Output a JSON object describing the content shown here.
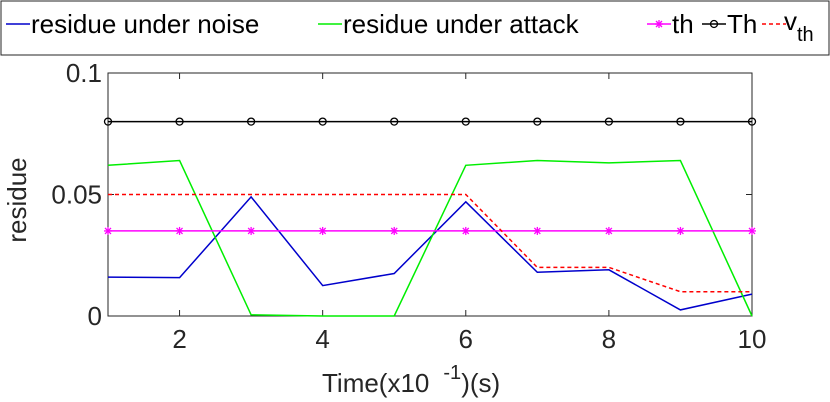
{
  "chart_data": {
    "type": "line",
    "xlabel": "Time(x10",
    "xlabel_exp": "-1",
    "xlabel_suffix": ")(s)",
    "ylabel": "residue",
    "xlim": [
      1,
      10
    ],
    "ylim": [
      0,
      0.1
    ],
    "xticks": [
      2,
      4,
      6,
      8,
      10
    ],
    "yticks": [
      0,
      0.05,
      0.1
    ],
    "ytick_labels": [
      "0",
      "0.05",
      "0.1"
    ],
    "grid": false,
    "legend_position": "top",
    "x": [
      1,
      2,
      3,
      4,
      5,
      6,
      7,
      8,
      9,
      10
    ],
    "series": [
      {
        "name": "residue under noise",
        "color": "#0000cc",
        "style": "solid",
        "marker": "none",
        "values": [
          0.016,
          0.0158,
          0.049,
          0.0125,
          0.0175,
          0.047,
          0.018,
          0.019,
          0.0025,
          0.009
        ]
      },
      {
        "name": "residue under attack",
        "color": "#00ee00",
        "style": "solid",
        "marker": "none",
        "values": [
          0.062,
          0.064,
          0.0005,
          0.0,
          0.0,
          0.062,
          0.064,
          0.063,
          0.064,
          0.0
        ]
      },
      {
        "name": "th",
        "color": "#ff00ff",
        "style": "solid",
        "marker": "asterisk",
        "values": [
          0.035,
          0.035,
          0.035,
          0.035,
          0.035,
          0.035,
          0.035,
          0.035,
          0.035,
          0.035
        ]
      },
      {
        "name": "Th",
        "color": "#000000",
        "style": "solid",
        "marker": "circle",
        "values": [
          0.08,
          0.08,
          0.08,
          0.08,
          0.08,
          0.08,
          0.08,
          0.08,
          0.08,
          0.08
        ]
      },
      {
        "name": "v",
        "name_sub": "th",
        "color": "#ff0000",
        "style": "dashed",
        "marker": "none",
        "values": [
          0.05,
          0.05,
          0.05,
          0.05,
          0.05,
          0.05,
          0.02,
          0.02,
          0.01,
          0.01
        ]
      }
    ]
  }
}
